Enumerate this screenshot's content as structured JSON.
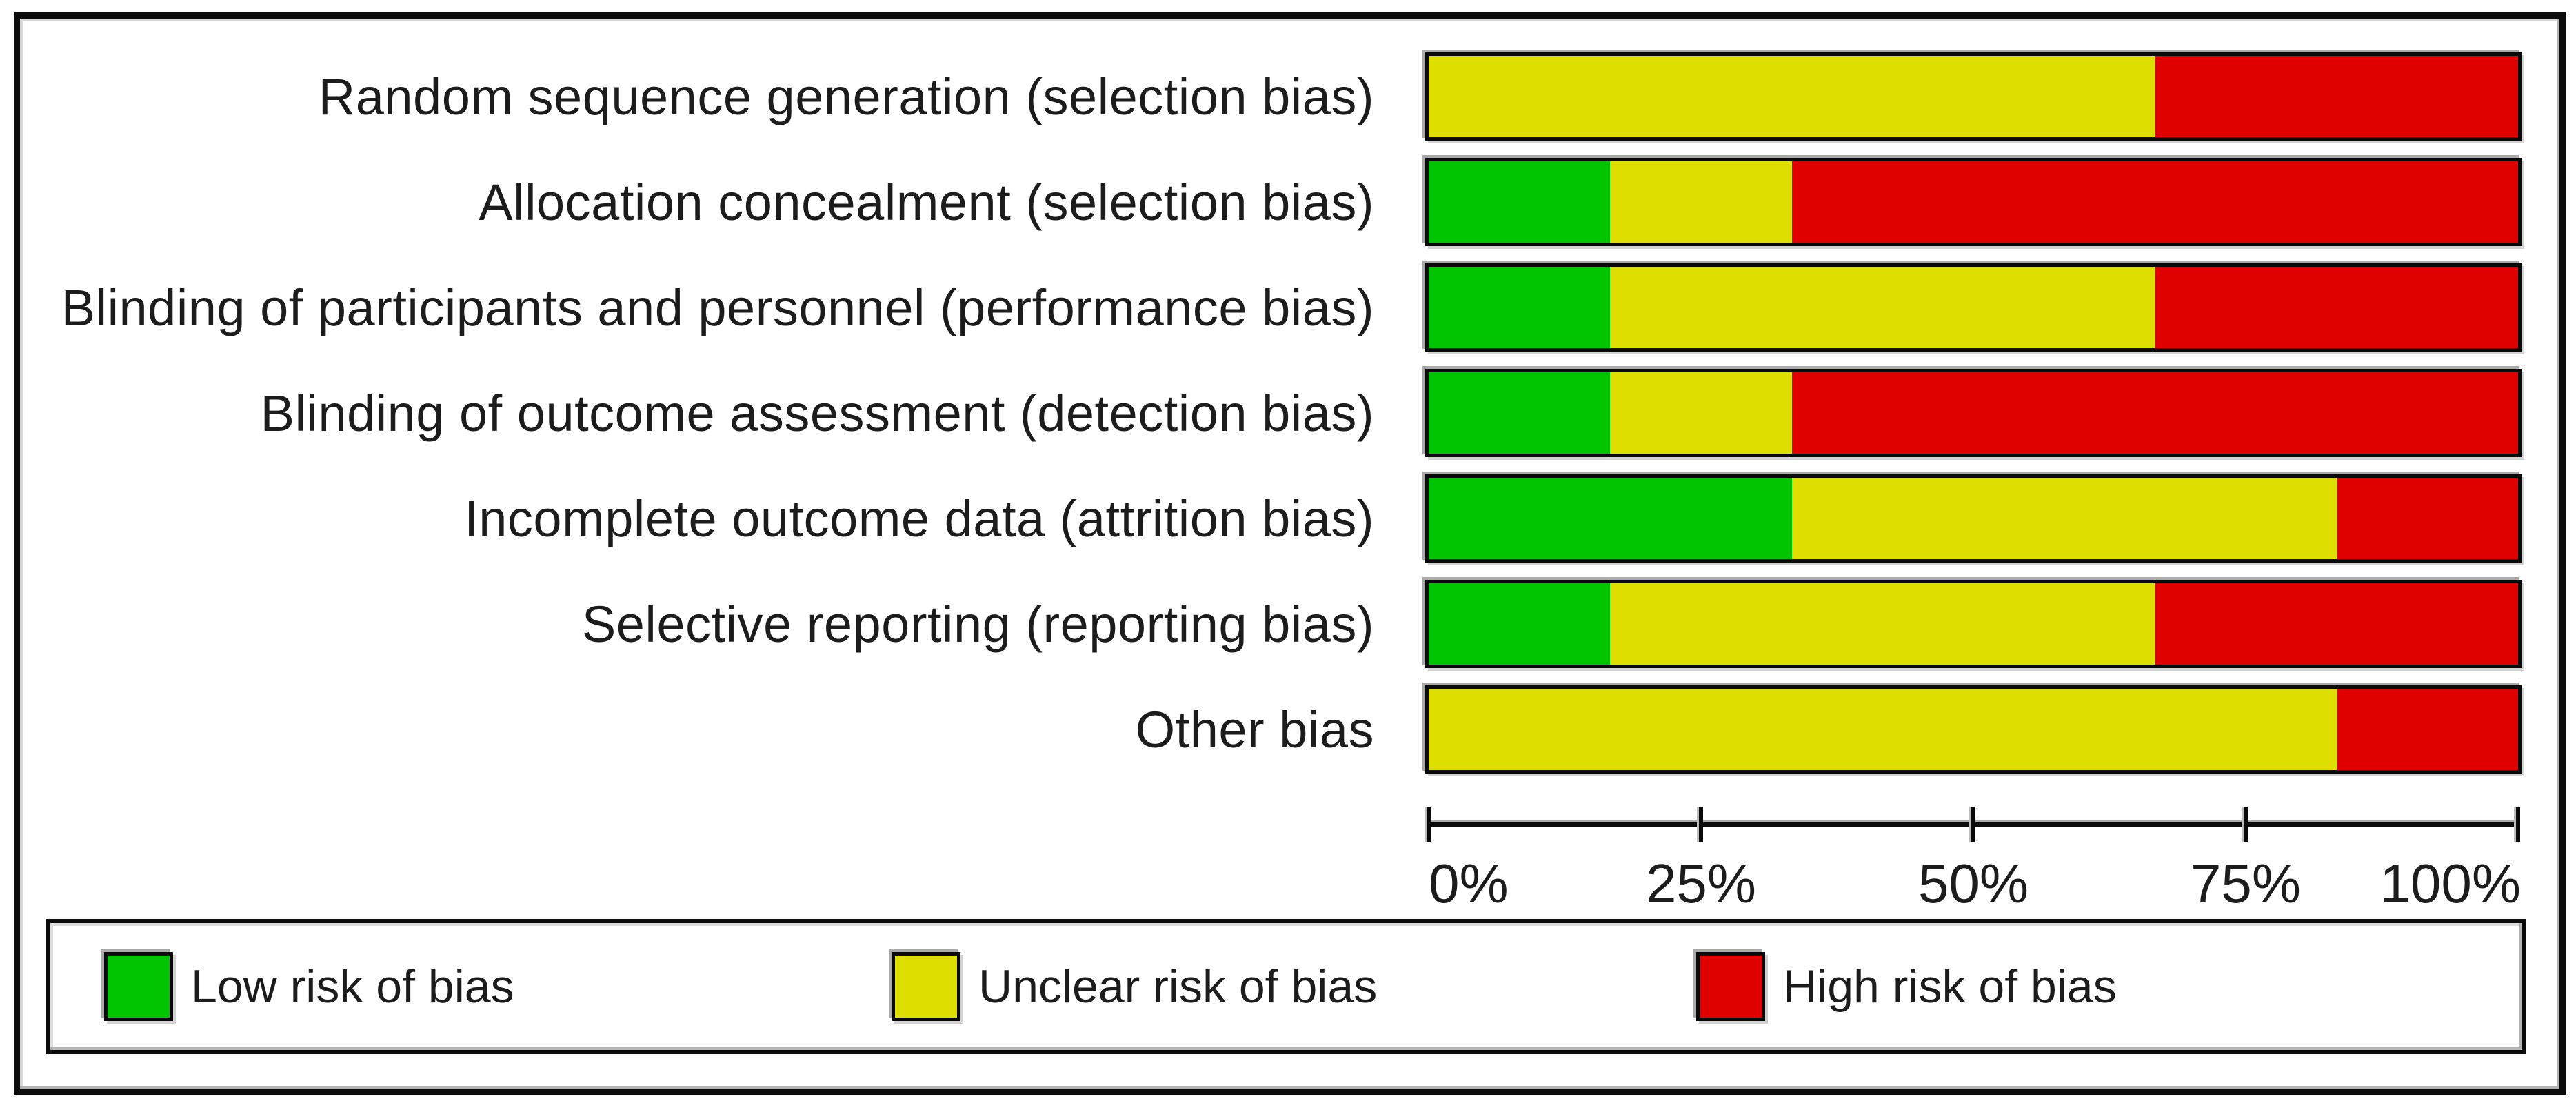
{
  "colors": {
    "low_risk": "#00c400",
    "unclear_risk": "#dedf00",
    "high_risk": "#e00000",
    "frame": "#0c0c0c",
    "text": "#1c1c1c"
  },
  "chart_data": {
    "type": "bar",
    "stacked": true,
    "orientation": "horizontal",
    "title": "",
    "xlabel": "",
    "ylabel": "",
    "xlim": [
      0,
      100
    ],
    "grid": false,
    "legend_position": "bottom",
    "x_tick_labels": [
      "0%",
      "25%",
      "50%",
      "75%",
      "100%"
    ],
    "x_tick_positions": [
      0,
      25,
      50,
      75,
      100
    ],
    "categories": [
      "Random sequence generation (selection bias)",
      "Allocation concealment (selection bias)",
      "Blinding of participants and personnel (performance bias)",
      "Blinding of outcome assessment (detection bias)",
      "Incomplete outcome data (attrition bias)",
      "Selective reporting (reporting bias)",
      "Other bias"
    ],
    "series": [
      {
        "name": "Low risk of bias",
        "color": "#00c400",
        "values": [
          0,
          16.67,
          16.67,
          16.67,
          33.33,
          16.67,
          0
        ]
      },
      {
        "name": "Unclear risk of bias",
        "color": "#dedf00",
        "values": [
          66.67,
          16.67,
          50,
          16.67,
          50,
          50,
          83.33
        ]
      },
      {
        "name": "High risk of bias",
        "color": "#e00000",
        "values": [
          33.33,
          66.66,
          33.33,
          66.66,
          16.67,
          33.33,
          16.67
        ]
      }
    ]
  },
  "legend": {
    "items": [
      {
        "label": "Low risk of bias",
        "color": "#00c400"
      },
      {
        "label": "Unclear risk of bias",
        "color": "#dedf00"
      },
      {
        "label": "High risk of bias",
        "color": "#e00000"
      }
    ]
  }
}
